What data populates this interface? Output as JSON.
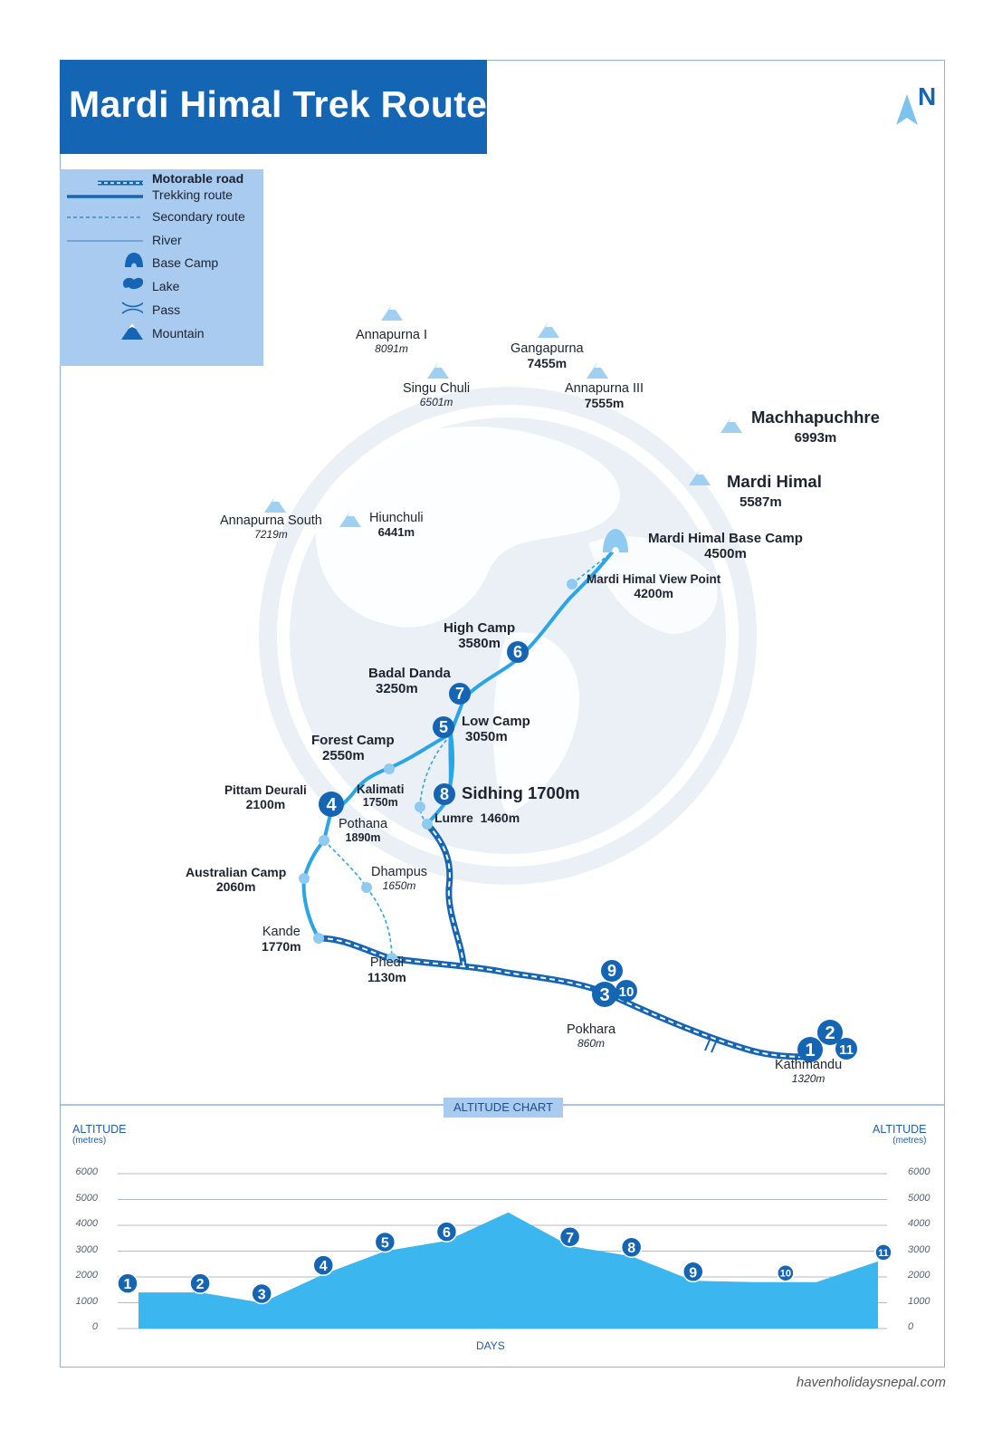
{
  "title": "Mardi Himal Trek Route",
  "north_label": "N",
  "legend": [
    {
      "icon": "motorable-road",
      "label": "Motorable road",
      "bold": true
    },
    {
      "icon": "trekking-route",
      "label": "Trekking route"
    },
    {
      "icon": "secondary-route",
      "label": "Secondary route"
    },
    {
      "icon": "river",
      "label": "River"
    },
    {
      "icon": "base-camp-icon",
      "label": "Base Camp"
    },
    {
      "icon": "lake-icon",
      "label": "Lake"
    },
    {
      "icon": "pass-icon",
      "label": "Pass"
    },
    {
      "icon": "mountain-icon",
      "label": "Mountain"
    }
  ],
  "mountains": [
    {
      "name": "Annapurna I",
      "elevation": "8091m"
    },
    {
      "name": "Gangapurna",
      "elevation": "7455m"
    },
    {
      "name": "Singu Chuli",
      "elevation": "6501m"
    },
    {
      "name": "Annapurna III",
      "elevation": "7555m"
    },
    {
      "name": "Machhapuchhre",
      "elevation": "6993m"
    },
    {
      "name": "Mardi Himal",
      "elevation": "5587m"
    },
    {
      "name": "Annapurna South",
      "elevation": "7219m"
    },
    {
      "name": "Hiunchuli",
      "elevation": "6441m"
    }
  ],
  "places": [
    {
      "name": "Mardi Himal Base Camp",
      "elevation": "4500m"
    },
    {
      "name": "Mardi Himal View Point",
      "elevation": "4200m"
    },
    {
      "name": "High Camp",
      "elevation": "3580m"
    },
    {
      "name": "Badal Danda",
      "elevation": "3250m"
    },
    {
      "name": "Low Camp",
      "elevation": "3050m"
    },
    {
      "name": "Forest Camp",
      "elevation": "2550m"
    },
    {
      "name": "Sidhing 1700m",
      "elevation": ""
    },
    {
      "name": "Pittam Deurali",
      "elevation": "2100m"
    },
    {
      "name": "Kalimati",
      "elevation": "1750m"
    },
    {
      "name": "Lumre  1460m",
      "elevation": ""
    },
    {
      "name": "Pothana",
      "elevation": "1890m"
    },
    {
      "name": "Australian Camp",
      "elevation": "2060m"
    },
    {
      "name": "Dhampus",
      "elevation": "1650m"
    },
    {
      "name": "Kande",
      "elevation": "1770m"
    },
    {
      "name": "Phedi",
      "elevation": "1130m"
    },
    {
      "name": "Pokhara",
      "elevation": "860m"
    },
    {
      "name": "Kathmandu",
      "elevation": "1320m"
    }
  ],
  "day_markers": [
    "1",
    "2",
    "3",
    "4",
    "5",
    "6",
    "7",
    "8",
    "9",
    "10",
    "11"
  ],
  "colors": {
    "primary": "#1565b5",
    "light": "#a9cbef",
    "route": "#2aa6e6",
    "chart_fill": "#3bb6ee",
    "globe": "#e8eef6"
  },
  "altitude_chart": {
    "tab_label": "ALTITUDE CHART",
    "y_title": "ALTITUDE",
    "y_unit": "(metres)",
    "y_ticks": [
      "6000",
      "5000",
      "4000",
      "3000",
      "2000",
      "1000",
      "0"
    ],
    "x_title": "DAYS"
  },
  "chart_data": {
    "type": "area",
    "title": "ALTITUDE CHART",
    "xlabel": "DAYS",
    "ylabel": "ALTITUDE (metres)",
    "ylim": [
      0,
      6000
    ],
    "grid": true,
    "x": [
      0,
      1,
      2,
      3,
      4,
      5,
      6,
      7,
      8,
      9,
      10,
      11,
      12
    ],
    "values": [
      1400,
      1400,
      1000,
      2100,
      3000,
      3400,
      4500,
      3200,
      2800,
      1850,
      1800,
      1800,
      2600
    ],
    "markers": [
      {
        "label": "1",
        "x": 0,
        "value": 1400
      },
      {
        "label": "2",
        "x": 1,
        "value": 1400
      },
      {
        "label": "3",
        "x": 2,
        "value": 1000
      },
      {
        "label": "4",
        "x": 3,
        "value": 2100
      },
      {
        "label": "5",
        "x": 4,
        "value": 3000
      },
      {
        "label": "6",
        "x": 5,
        "value": 3400
      },
      {
        "label": "7",
        "x": 7,
        "value": 3200
      },
      {
        "label": "8",
        "x": 8,
        "value": 2800
      },
      {
        "label": "9",
        "x": 9,
        "value": 1850
      },
      {
        "label": "10",
        "x": 10.5,
        "value": 1800
      },
      {
        "label": "11",
        "x": 12,
        "value": 2600
      }
    ]
  },
  "website": "havenholidaysnepal.com"
}
